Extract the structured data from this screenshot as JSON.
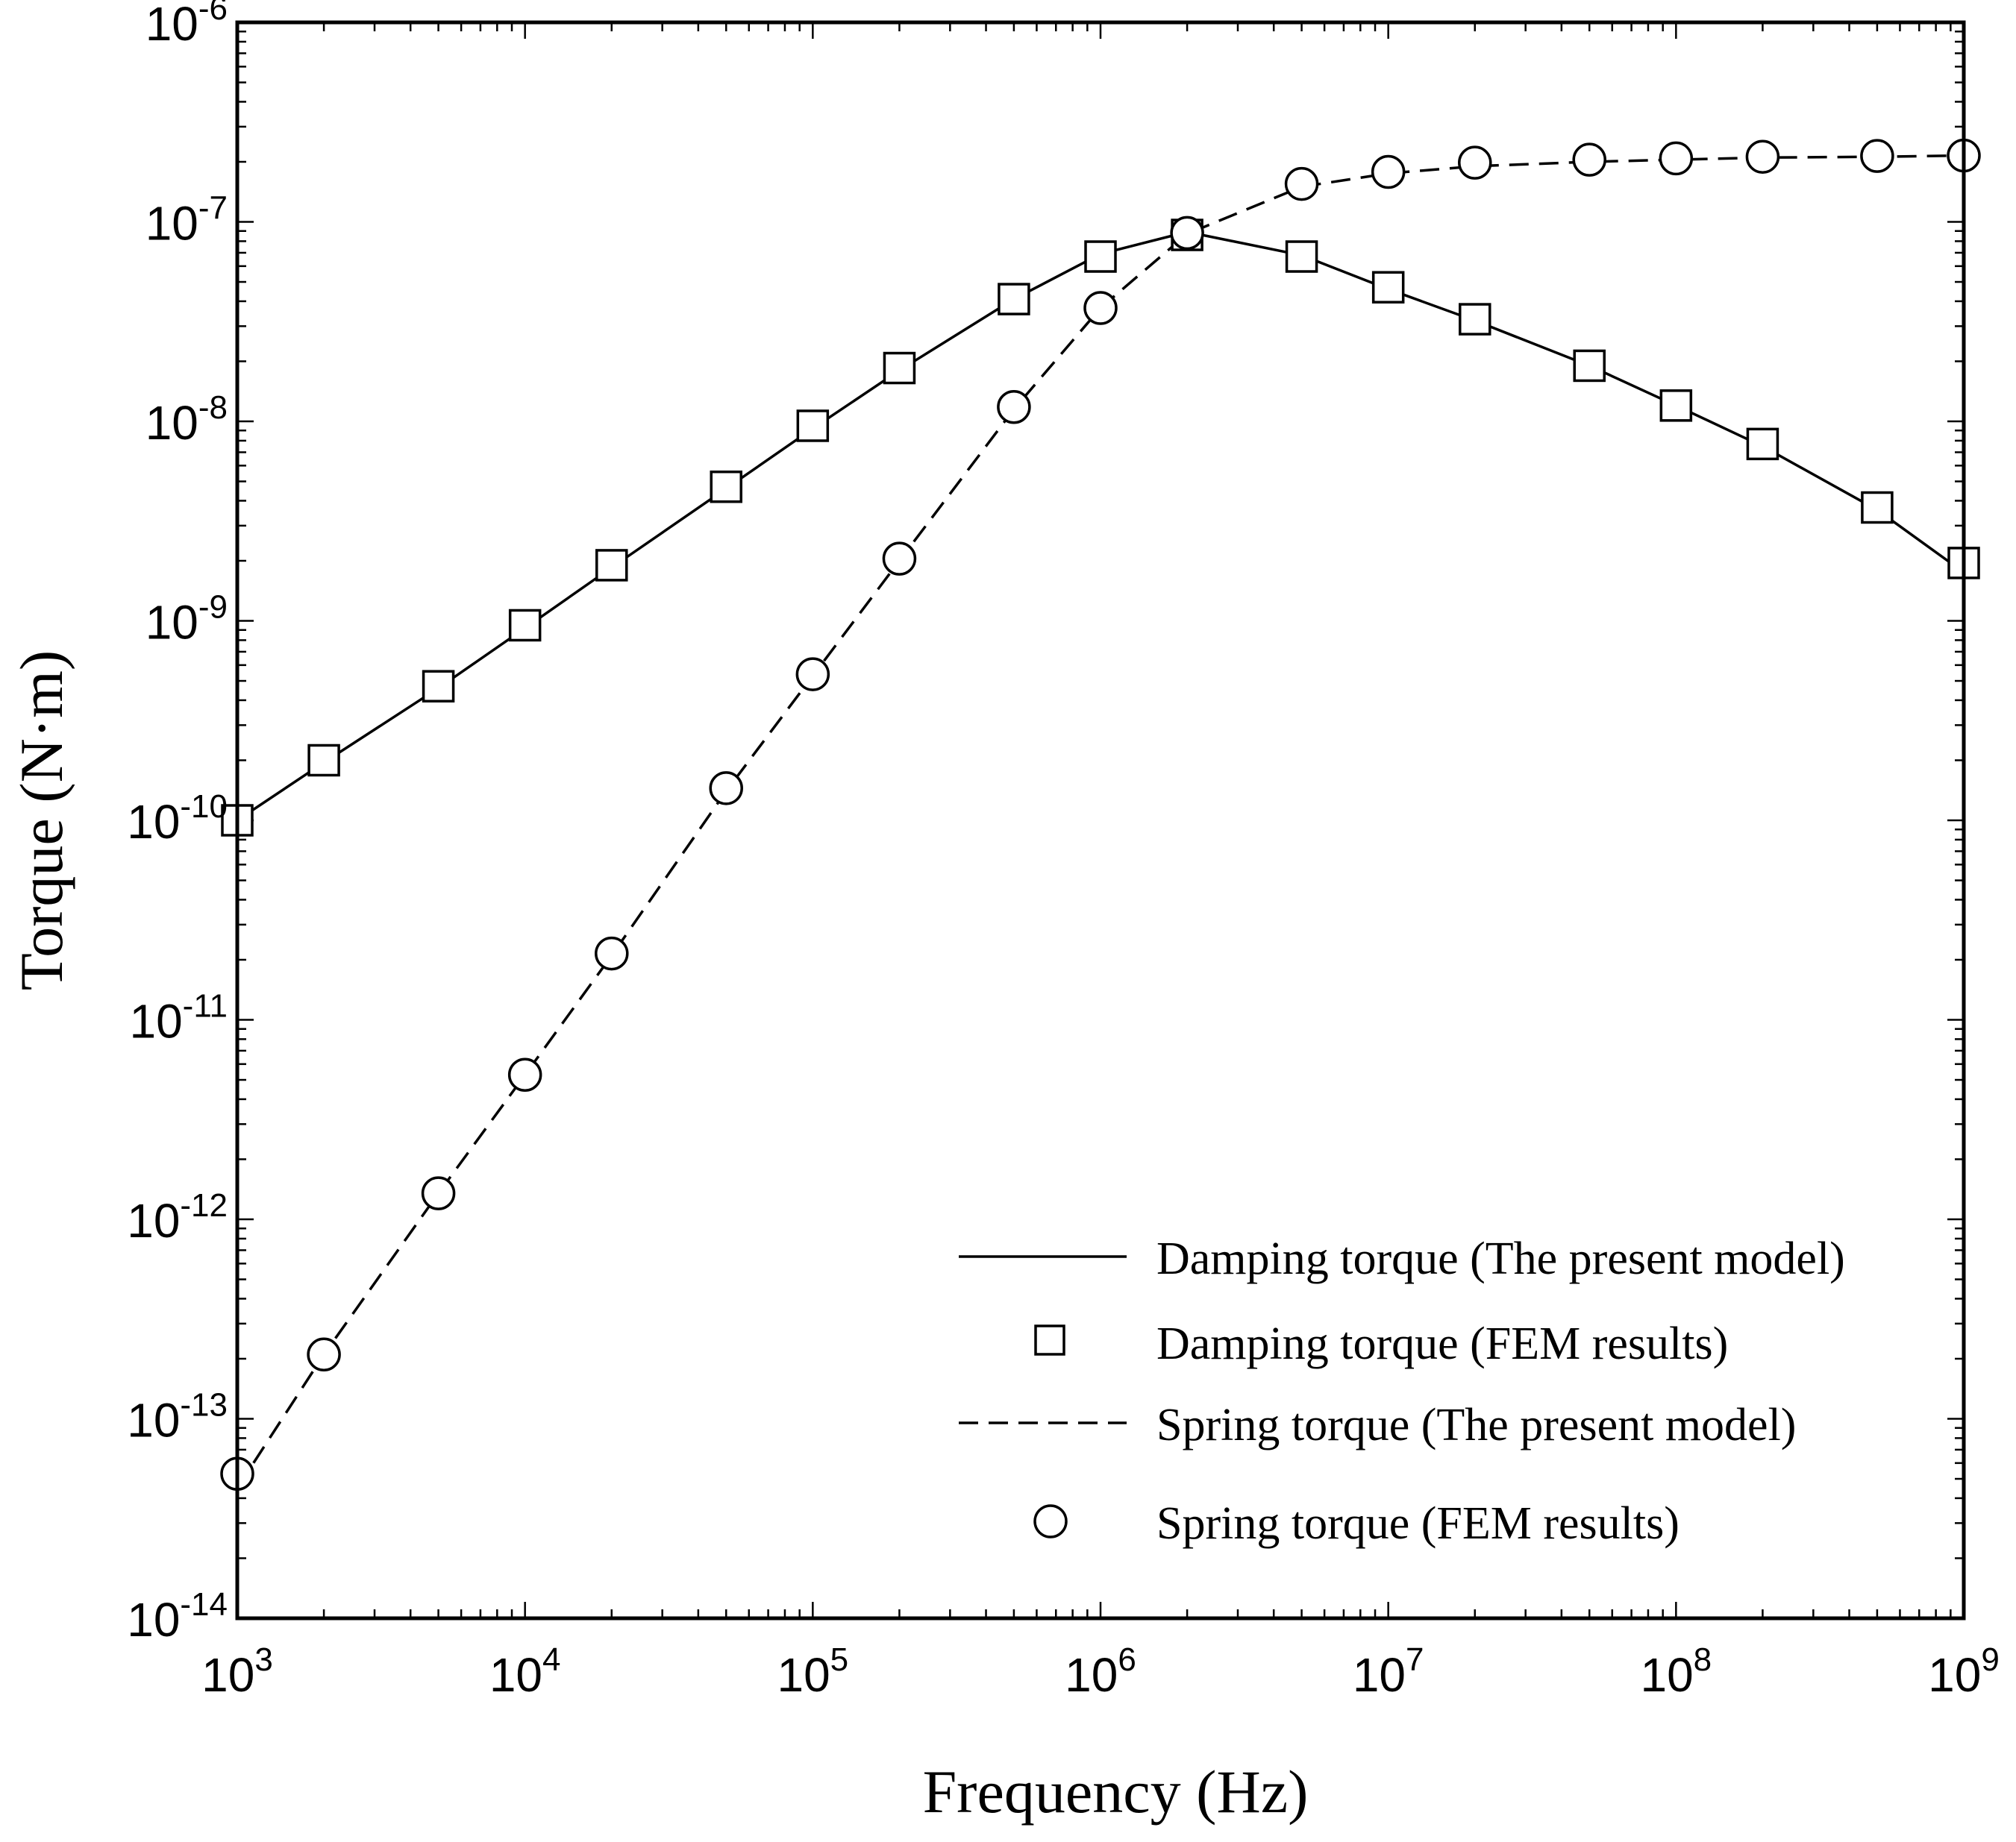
{
  "chart_data": {
    "type": "line",
    "title": "",
    "xlabel": "Frequency (Hz)",
    "ylabel": "Torque (N·m)",
    "x_scale": "log",
    "y_scale": "log",
    "xlim": [
      1000,
      1000000000
    ],
    "ylim": [
      1e-14,
      1e-06
    ],
    "grid": false,
    "legend_position": "bottom-right",
    "x_ticks": [
      {
        "base": "10",
        "exp": "3"
      },
      {
        "base": "10",
        "exp": "4"
      },
      {
        "base": "10",
        "exp": "5"
      },
      {
        "base": "10",
        "exp": "6"
      },
      {
        "base": "10",
        "exp": "7"
      },
      {
        "base": "10",
        "exp": "8"
      },
      {
        "base": "10",
        "exp": "9"
      }
    ],
    "y_ticks": [
      {
        "base": "10",
        "exp": "-14"
      },
      {
        "base": "10",
        "exp": "-13"
      },
      {
        "base": "10",
        "exp": "-12"
      },
      {
        "base": "10",
        "exp": "-11"
      },
      {
        "base": "10",
        "exp": "-10"
      },
      {
        "base": "10",
        "exp": "-9"
      },
      {
        "base": "10",
        "exp": "-8"
      },
      {
        "base": "10",
        "exp": "-7"
      },
      {
        "base": "10",
        "exp": "-6"
      }
    ],
    "series": [
      {
        "name": "Damping torque (The present model)",
        "kind": "line",
        "dash": "solid",
        "marker": "none",
        "x": [
          1000,
          2000,
          5000,
          10000,
          20000,
          50000,
          100000,
          200000,
          500000,
          1000000,
          2000000,
          5000000,
          10000000,
          20000000,
          50000000,
          100000000,
          200000000,
          500000000,
          1000000000
        ],
        "y": [
          1e-10,
          1.95e-10,
          4.6e-10,
          9.2e-10,
          1.85e-09,
          4.6e-09,
          9.2e-09,
          1.8e-08,
          4.1e-08,
          6.9e-08,
          8.9e-08,
          6.8e-08,
          4.6e-08,
          3.2e-08,
          1.9e-08,
          1.2e-08,
          7.5e-09,
          3.6e-09,
          1.75e-09
        ]
      },
      {
        "name": "Damping torque (FEM results)",
        "kind": "marker",
        "dash": "none",
        "marker": "square",
        "x": [
          1000,
          2000,
          5000,
          10000,
          20000,
          50000,
          100000,
          200000,
          500000,
          1000000,
          2000000,
          5000000,
          10000000,
          20000000,
          50000000,
          100000000,
          200000000,
          500000000,
          1000000000
        ],
        "y": [
          1e-10,
          2e-10,
          4.7e-10,
          9.5e-10,
          1.9e-09,
          4.7e-09,
          9.5e-09,
          1.85e-08,
          4.1e-08,
          6.7e-08,
          8.6e-08,
          6.7e-08,
          4.7e-08,
          3.25e-08,
          1.9e-08,
          1.2e-08,
          7.7e-09,
          3.7e-09,
          1.95e-09
        ]
      },
      {
        "name": "Spring torque (The present model)",
        "kind": "line",
        "dash": "dashed",
        "marker": "none",
        "x": [
          1000,
          2000,
          5000,
          10000,
          20000,
          50000,
          100000,
          200000,
          500000,
          1000000,
          2000000,
          5000000,
          10000000,
          20000000,
          50000000,
          100000000,
          200000000,
          500000000,
          1000000000
        ],
        "y": [
          4.5e-14,
          2.1e-13,
          1.35e-12,
          5.3e-12,
          2.1e-11,
          1.4e-10,
          5.3e-10,
          2e-09,
          1.15e-08,
          3.7e-08,
          8.7e-08,
          1.5e-07,
          1.75e-07,
          1.9e-07,
          2e-07,
          2.05e-07,
          2.1e-07,
          2.12e-07,
          2.15e-07
        ]
      },
      {
        "name": "Spring torque (FEM results)",
        "kind": "marker",
        "dash": "none",
        "marker": "circle",
        "x": [
          1000,
          2000,
          5000,
          10000,
          20000,
          50000,
          100000,
          200000,
          500000,
          1000000,
          2000000,
          5000000,
          10000000,
          20000000,
          50000000,
          100000000,
          200000000,
          500000000,
          1000000000
        ],
        "y": [
          5.3e-14,
          2.1e-13,
          1.35e-12,
          5.3e-12,
          2.15e-11,
          1.45e-10,
          5.4e-10,
          2.05e-09,
          1.18e-08,
          3.7e-08,
          8.8e-08,
          1.55e-07,
          1.78e-07,
          1.98e-07,
          2.05e-07,
          2.08e-07,
          2.12e-07,
          2.14e-07,
          2.15e-07
        ]
      }
    ]
  }
}
